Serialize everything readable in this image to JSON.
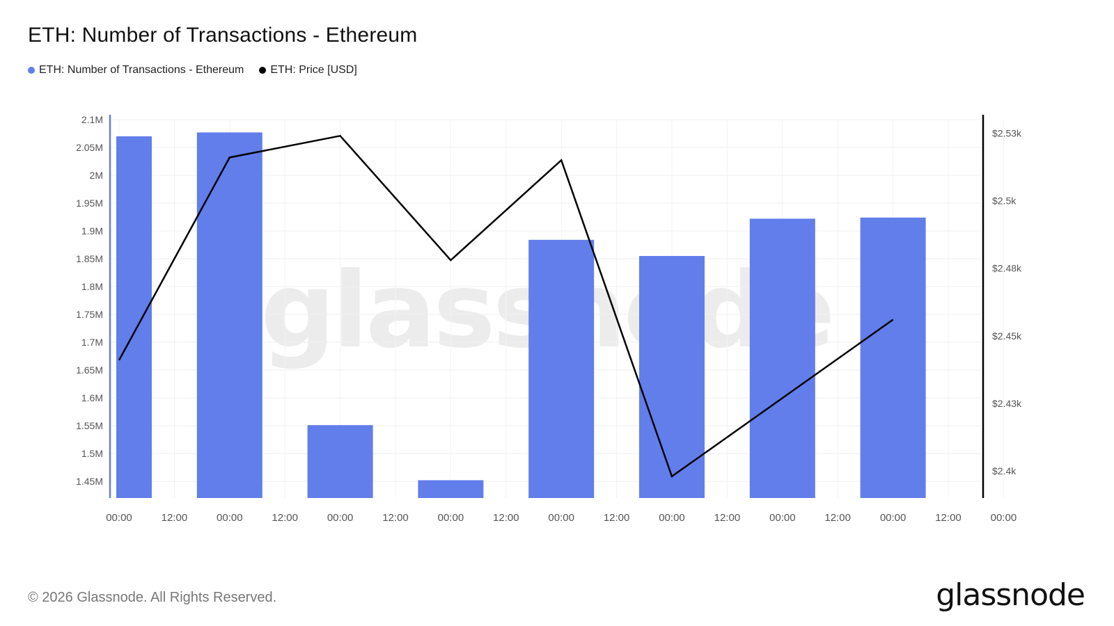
{
  "title": "ETH: Number of Transactions - Ethereum",
  "legend": [
    {
      "label": "ETH: Number of Transactions - Ethereum",
      "color": "#627EEA"
    },
    {
      "label": "ETH: Price [USD]",
      "color": "#000000"
    }
  ],
  "footer": {
    "copyright": "© 2026 Glassnode. All Rights Reserved.",
    "brand": "glassnode"
  },
  "watermark": "glassnode",
  "chart_data": {
    "type": "bar",
    "x_ticks": [
      "00:00",
      "12:00",
      "00:00",
      "12:00",
      "00:00",
      "12:00",
      "00:00",
      "12:00",
      "00:00",
      "12:00",
      "00:00",
      "12:00",
      "00:00",
      "12:00",
      "00:00",
      "12:00",
      "00:00"
    ],
    "y_left_ticks": [
      "2.1M",
      "2.05M",
      "2M",
      "1.95M",
      "1.9M",
      "1.85M",
      "1.8M",
      "1.75M",
      "1.7M",
      "1.65M",
      "1.6M",
      "1.55M",
      "1.5M",
      "1.45M"
    ],
    "y_left_values": [
      2100000,
      2050000,
      2000000,
      1950000,
      1900000,
      1850000,
      1800000,
      1750000,
      1700000,
      1650000,
      1600000,
      1550000,
      1500000,
      1450000
    ],
    "y_right_ticks": [
      "$2.53k",
      "$2.5k",
      "$2.48k",
      "$2.45k",
      "$2.43k",
      "$2.4k"
    ],
    "y_right_values": [
      2525,
      2500,
      2475,
      2450,
      2425,
      2400
    ],
    "ylim_left": [
      1420000,
      2100000
    ],
    "ylim_right": [
      2390,
      2530
    ],
    "grid": true,
    "series": [
      {
        "name": "ETH: Number of Transactions - Ethereum",
        "type": "bar",
        "axis": "left",
        "color": "#627EEA",
        "tick_index": [
          0,
          2,
          4,
          6,
          8,
          10,
          12,
          14
        ],
        "values": [
          2070000,
          2077000,
          1551000,
          1452000,
          1884000,
          1855000,
          1922000,
          1924000
        ]
      },
      {
        "name": "ETH: Price [USD]",
        "type": "line",
        "axis": "right",
        "color": "#000000",
        "tick_index": [
          0,
          2,
          4,
          6,
          8,
          10,
          12,
          14
        ],
        "values": [
          2441,
          2516,
          2524,
          2478,
          2515,
          2398,
          2427,
          2456
        ]
      }
    ]
  }
}
